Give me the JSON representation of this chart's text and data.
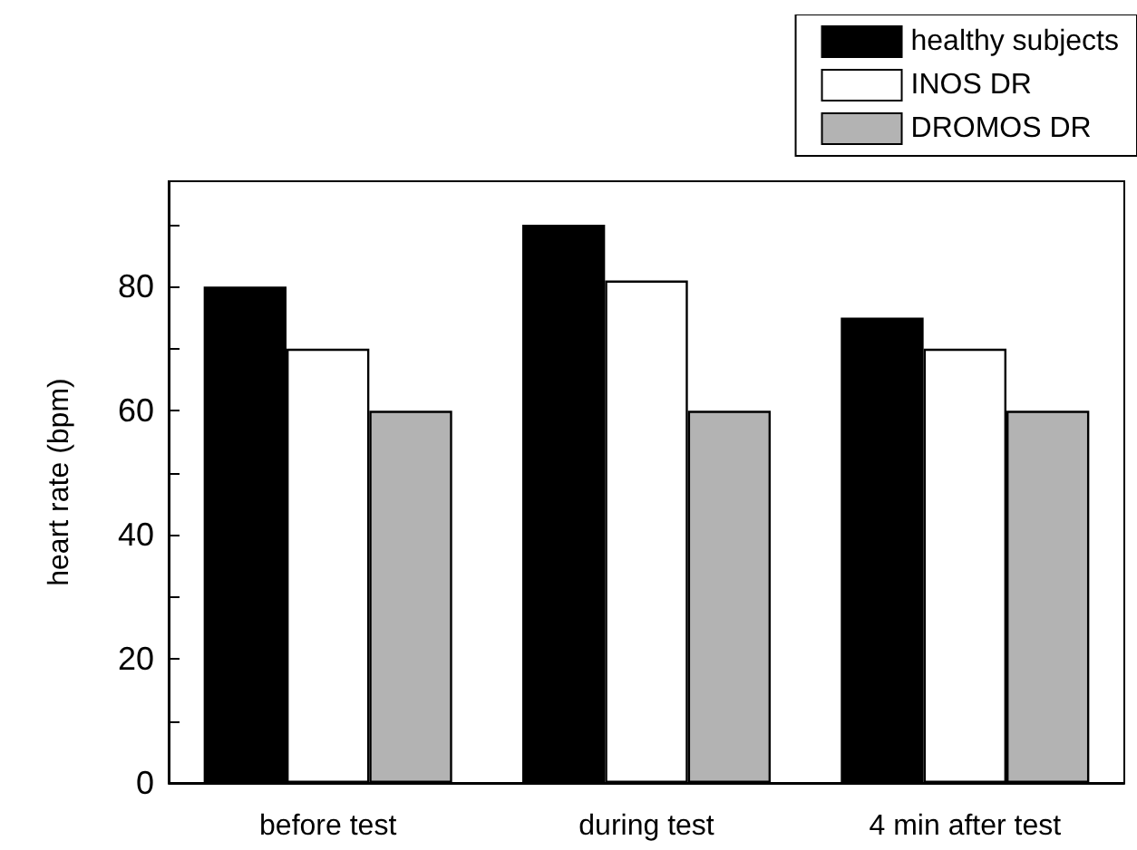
{
  "chart_data": {
    "type": "bar",
    "ylabel": "heart rate (bpm)",
    "categories": [
      "before test",
      "during test",
      "4 min after test"
    ],
    "series": [
      {
        "name": "healthy subjects",
        "color": "#000000",
        "values": [
          80,
          90,
          75
        ]
      },
      {
        "name": "INOS DR",
        "color": "#ffffff",
        "values": [
          70,
          81,
          70
        ]
      },
      {
        "name": "DROMOS DR",
        "color": "#b3b3b3",
        "values": [
          60,
          60,
          60
        ]
      }
    ],
    "ylim": [
      0,
      97
    ],
    "yticks": [
      0,
      {
        "value": 10,
        "label": null
      },
      20,
      {
        "value": 30,
        "label": null
      },
      40,
      {
        "value": 50,
        "label": null
      },
      60,
      {
        "value": 70,
        "label": null
      },
      80,
      {
        "value": 90,
        "label": null
      }
    ],
    "grid": false,
    "legend": "top right"
  }
}
